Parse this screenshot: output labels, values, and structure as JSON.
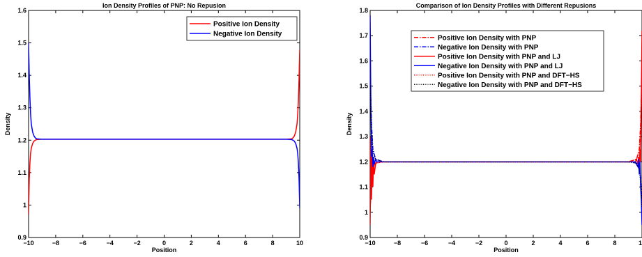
{
  "chart_data": [
    {
      "type": "line",
      "title": "Ion Density Profiles of PNP: No Repusion",
      "xlabel": "Position",
      "ylabel": "Density",
      "xlim": [
        -10,
        10
      ],
      "ylim": [
        0.9,
        1.6
      ],
      "xticks": [
        "−10",
        "−8",
        "−6",
        "−4",
        "−2",
        "0",
        "2",
        "4",
        "6",
        "8",
        "10"
      ],
      "yticks": [
        "0.9",
        "1",
        "1.1",
        "1.2",
        "1.3",
        "1.4",
        "1.5",
        "1.6"
      ],
      "legend_position": "top-right",
      "series": [
        {
          "name": "Positive Ion Density",
          "color": "#ff0000",
          "dash": "solid",
          "x": [
            -10,
            -9.95,
            -9.9,
            -9.85,
            -9.8,
            -9.7,
            -9.6,
            -9.5,
            -9.4,
            -9,
            -5,
            0,
            5,
            9,
            9.4,
            9.5,
            9.6,
            9.7,
            9.8,
            9.85,
            9.9,
            9.95,
            10
          ],
          "y": [
            0.97,
            1.08,
            1.13,
            1.16,
            1.175,
            1.19,
            1.197,
            1.2,
            1.202,
            1.203,
            1.203,
            1.203,
            1.203,
            1.203,
            1.204,
            1.207,
            1.213,
            1.225,
            1.25,
            1.28,
            1.32,
            1.39,
            1.48
          ]
        },
        {
          "name": "Negative Ion Density",
          "color": "#0000ff",
          "dash": "solid",
          "x": [
            -10,
            -9.95,
            -9.9,
            -9.85,
            -9.8,
            -9.7,
            -9.6,
            -9.5,
            -9.4,
            -9,
            -5,
            0,
            5,
            9,
            9.4,
            9.5,
            9.6,
            9.7,
            9.8,
            9.85,
            9.9,
            9.95,
            10
          ],
          "y": [
            1.5,
            1.4,
            1.33,
            1.28,
            1.25,
            1.225,
            1.213,
            1.207,
            1.204,
            1.203,
            1.203,
            1.203,
            1.203,
            1.203,
            1.202,
            1.2,
            1.197,
            1.19,
            1.175,
            1.16,
            1.13,
            1.08,
            0.99
          ]
        }
      ]
    },
    {
      "type": "line",
      "title": "Comparison of Ion Density Profiles with Different Repusions",
      "xlabel": "Position",
      "ylabel": "Density",
      "xlim": [
        -10,
        10
      ],
      "ylim": [
        0.9,
        1.8
      ],
      "xticks": [
        "−10",
        "−8",
        "−6",
        "−4",
        "−2",
        "0",
        "2",
        "4",
        "6",
        "8",
        "10"
      ],
      "yticks": [
        "0.9",
        "1",
        "1.1",
        "1.2",
        "1.3",
        "1.4",
        "1.5",
        "1.6",
        "1.7",
        "1.8"
      ],
      "legend_position": "top-center",
      "series": [
        {
          "name": "Positive Ion Density with PNP",
          "color": "#ff0000",
          "dash": "dashdot",
          "x": [
            -10,
            -9.9,
            -9.8,
            -9.6,
            -9,
            0,
            9,
            9.6,
            9.8,
            9.9,
            10
          ],
          "y": [
            1.0,
            1.14,
            1.18,
            1.195,
            1.2,
            1.2,
            1.2,
            1.21,
            1.25,
            1.35,
            1.55
          ]
        },
        {
          "name": "Negative Ion Density with PNP",
          "color": "#0000ff",
          "dash": "dashdot",
          "x": [
            -10,
            -9.9,
            -9.8,
            -9.6,
            -9,
            0,
            9,
            9.6,
            9.8,
            9.9,
            10
          ],
          "y": [
            1.55,
            1.35,
            1.25,
            1.21,
            1.2,
            1.2,
            1.2,
            1.195,
            1.18,
            1.14,
            1.0
          ]
        },
        {
          "name": "Positive Ion Density with PNP and LJ",
          "color": "#ff0000",
          "dash": "solid",
          "x": [
            -10,
            -9.95,
            -9.9,
            -9.85,
            -9.8,
            -9.75,
            -9.7,
            -9.6,
            -9.5,
            -9,
            0,
            9,
            9.5,
            9.6,
            9.7,
            9.75,
            9.8,
            9.85,
            9.9,
            9.95,
            10
          ],
          "y": [
            0.95,
            1.3,
            1.05,
            1.22,
            1.1,
            1.21,
            1.15,
            1.19,
            1.2,
            1.2,
            1.2,
            1.2,
            1.2,
            1.21,
            1.19,
            1.22,
            1.18,
            1.25,
            1.2,
            1.45,
            1.72
          ]
        },
        {
          "name": "Negative Ion Density with PNP and LJ",
          "color": "#0000ff",
          "dash": "solid",
          "x": [
            -10,
            -9.95,
            -9.9,
            -9.85,
            -9.8,
            -9.75,
            -9.7,
            -9.6,
            -9.5,
            -9,
            0,
            9,
            9.5,
            9.6,
            9.7,
            9.75,
            9.8,
            9.85,
            9.9,
            9.95,
            10
          ],
          "y": [
            1.78,
            1.45,
            1.22,
            1.25,
            1.18,
            1.22,
            1.19,
            1.21,
            1.2,
            1.2,
            1.2,
            1.2,
            1.2,
            1.19,
            1.18,
            1.21,
            1.15,
            1.2,
            1.1,
            1.05,
            0.95
          ]
        },
        {
          "name": "Positive Ion Density with PNP and DFT−HS",
          "color": "#ff0000",
          "dash": "dotted",
          "x": [
            -10,
            -9.9,
            -9.8,
            -9.6,
            -9,
            0,
            9,
            9.6,
            9.8,
            9.9,
            10
          ],
          "y": [
            1.02,
            1.12,
            1.17,
            1.195,
            1.2,
            1.2,
            1.2,
            1.21,
            1.24,
            1.33,
            1.5
          ]
        },
        {
          "name": "Negative Ion Density with PNP and DFT−HS",
          "color": "#000000",
          "dash": "dotted",
          "x": [
            -10,
            -9.9,
            -9.8,
            -9.6,
            -9,
            0,
            9,
            9.6,
            9.8,
            9.9,
            10
          ],
          "y": [
            1.5,
            1.33,
            1.24,
            1.21,
            1.2,
            1.2,
            1.2,
            1.195,
            1.17,
            1.12,
            1.02
          ]
        }
      ]
    }
  ]
}
